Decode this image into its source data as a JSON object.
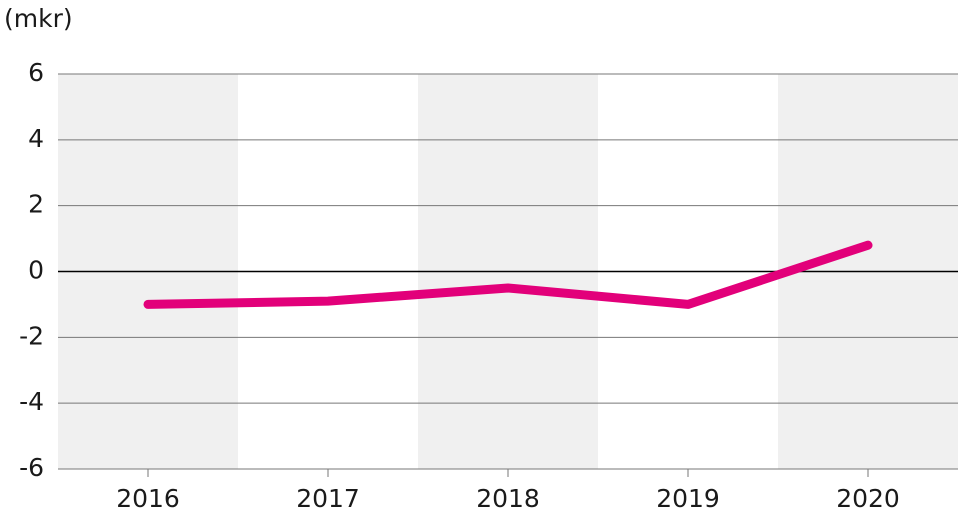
{
  "chart_data": {
    "type": "line",
    "y_label": "(mkr)",
    "categories": [
      "2016",
      "2017",
      "2018",
      "2019",
      "2020"
    ],
    "series": [
      {
        "color": "#e2007a",
        "values": [
          -1.0,
          -0.9,
          -0.5,
          -1.0,
          0.8
        ]
      }
    ],
    "ylim": [
      -6,
      6
    ],
    "yticks": [
      -6,
      -4,
      -2,
      0,
      2,
      4,
      6
    ],
    "grid": true,
    "band_color": "#f0f0f0"
  }
}
